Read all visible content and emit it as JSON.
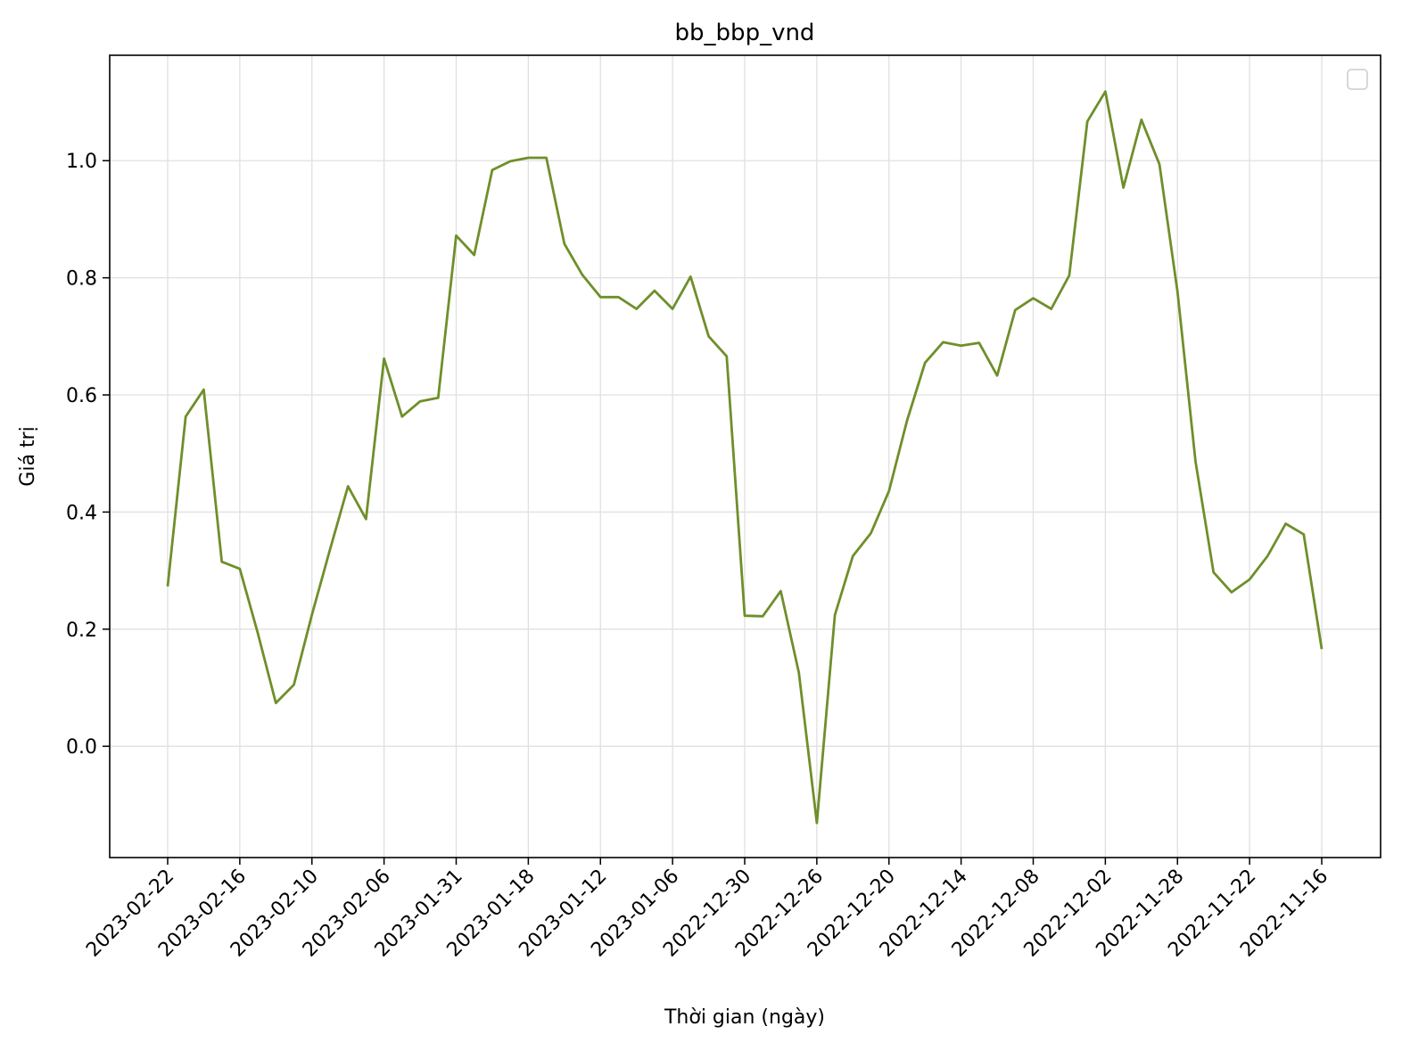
{
  "chart_data": {
    "type": "line",
    "title": "bb_bbp_vnd",
    "xlabel": "Thời gian (ngày)",
    "ylabel": "Giá trị",
    "x_tick_labels": [
      "2023-02-22",
      "2023-02-16",
      "2023-02-10",
      "2023-02-06",
      "2023-01-31",
      "2023-01-18",
      "2023-01-12",
      "2023-01-06",
      "2022-12-30",
      "2022-12-26",
      "2022-12-20",
      "2022-12-14",
      "2022-12-08",
      "2022-12-02",
      "2022-11-28",
      "2022-11-22",
      "2022-11-16"
    ],
    "y_ticks": [
      0.0,
      0.2,
      0.4,
      0.6,
      0.8,
      1.0
    ],
    "y_tick_labels": [
      "0.0",
      "0.2",
      "0.4",
      "0.6",
      "0.8",
      "1.0"
    ],
    "ylim": [
      -0.19,
      1.18
    ],
    "grid": true,
    "legend": "top-right (empty)",
    "series": [
      {
        "color": "#6f8f2a",
        "values": [
          0.273,
          0.563,
          0.609,
          0.315,
          0.303,
          0.193,
          0.074,
          0.105,
          0.225,
          0.336,
          0.444,
          0.388,
          0.662,
          0.563,
          0.589,
          0.595,
          0.872,
          0.839,
          0.984,
          0.999,
          1.005,
          1.005,
          0.858,
          0.805,
          0.767,
          0.767,
          0.747,
          0.778,
          0.747,
          0.802,
          0.7,
          0.666,
          0.223,
          0.222,
          0.265,
          0.126,
          -0.131,
          0.224,
          0.325,
          0.364,
          0.436,
          0.556,
          0.655,
          0.69,
          0.684,
          0.689,
          0.633,
          0.745,
          0.765,
          0.747,
          0.804,
          1.067,
          1.118,
          0.954,
          1.07,
          0.994,
          0.776,
          0.486,
          0.297,
          0.263,
          0.285,
          0.325,
          0.38,
          0.362,
          0.166
        ]
      }
    ]
  }
}
